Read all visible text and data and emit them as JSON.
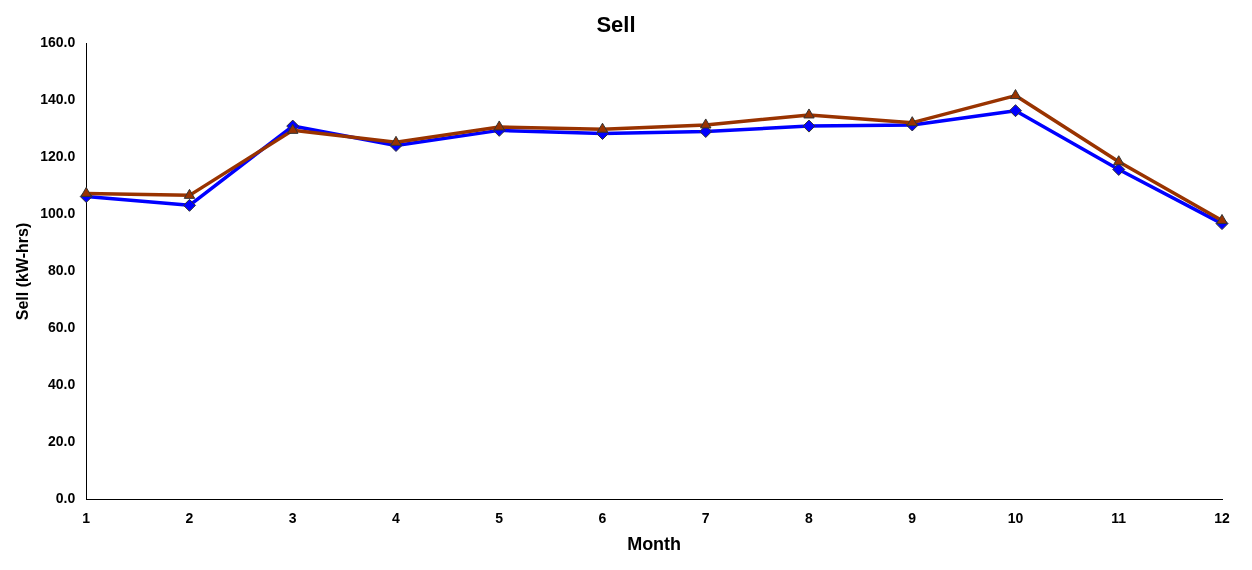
{
  "chart_data": {
    "type": "line",
    "title": "Sell",
    "xlabel": "Month",
    "ylabel": "Sell (kW-hrs)",
    "categories": [
      "1",
      "2",
      "3",
      "4",
      "5",
      "6",
      "7",
      "8",
      "9",
      "10",
      "11",
      "12"
    ],
    "series": [
      {
        "color": "#0000ff",
        "marker": "diamond",
        "values": [
          106.3,
          103.2,
          131.0,
          124.2,
          129.5,
          128.4,
          129.1,
          131.0,
          131.4,
          136.4,
          115.8,
          96.8
        ]
      },
      {
        "color": "#993300",
        "marker": "triangle",
        "values": [
          107.4,
          106.7,
          129.5,
          125.3,
          130.7,
          129.9,
          131.4,
          134.9,
          132.2,
          141.7,
          118.5,
          97.9
        ]
      }
    ],
    "ylim": [
      0,
      160
    ],
    "yticks": [
      {
        "value": 0,
        "label": "0.0"
      },
      {
        "value": 20,
        "label": "20.0"
      },
      {
        "value": 40,
        "label": "40.0"
      },
      {
        "value": 60,
        "label": "60.0"
      },
      {
        "value": 80,
        "label": "80.0"
      },
      {
        "value": 100,
        "label": "100.0"
      },
      {
        "value": 120,
        "label": "120.0"
      },
      {
        "value": 140,
        "label": "140.0"
      },
      {
        "value": 160,
        "label": "160.0"
      }
    ],
    "grid": false,
    "legend": false,
    "line_style": "solid"
  }
}
